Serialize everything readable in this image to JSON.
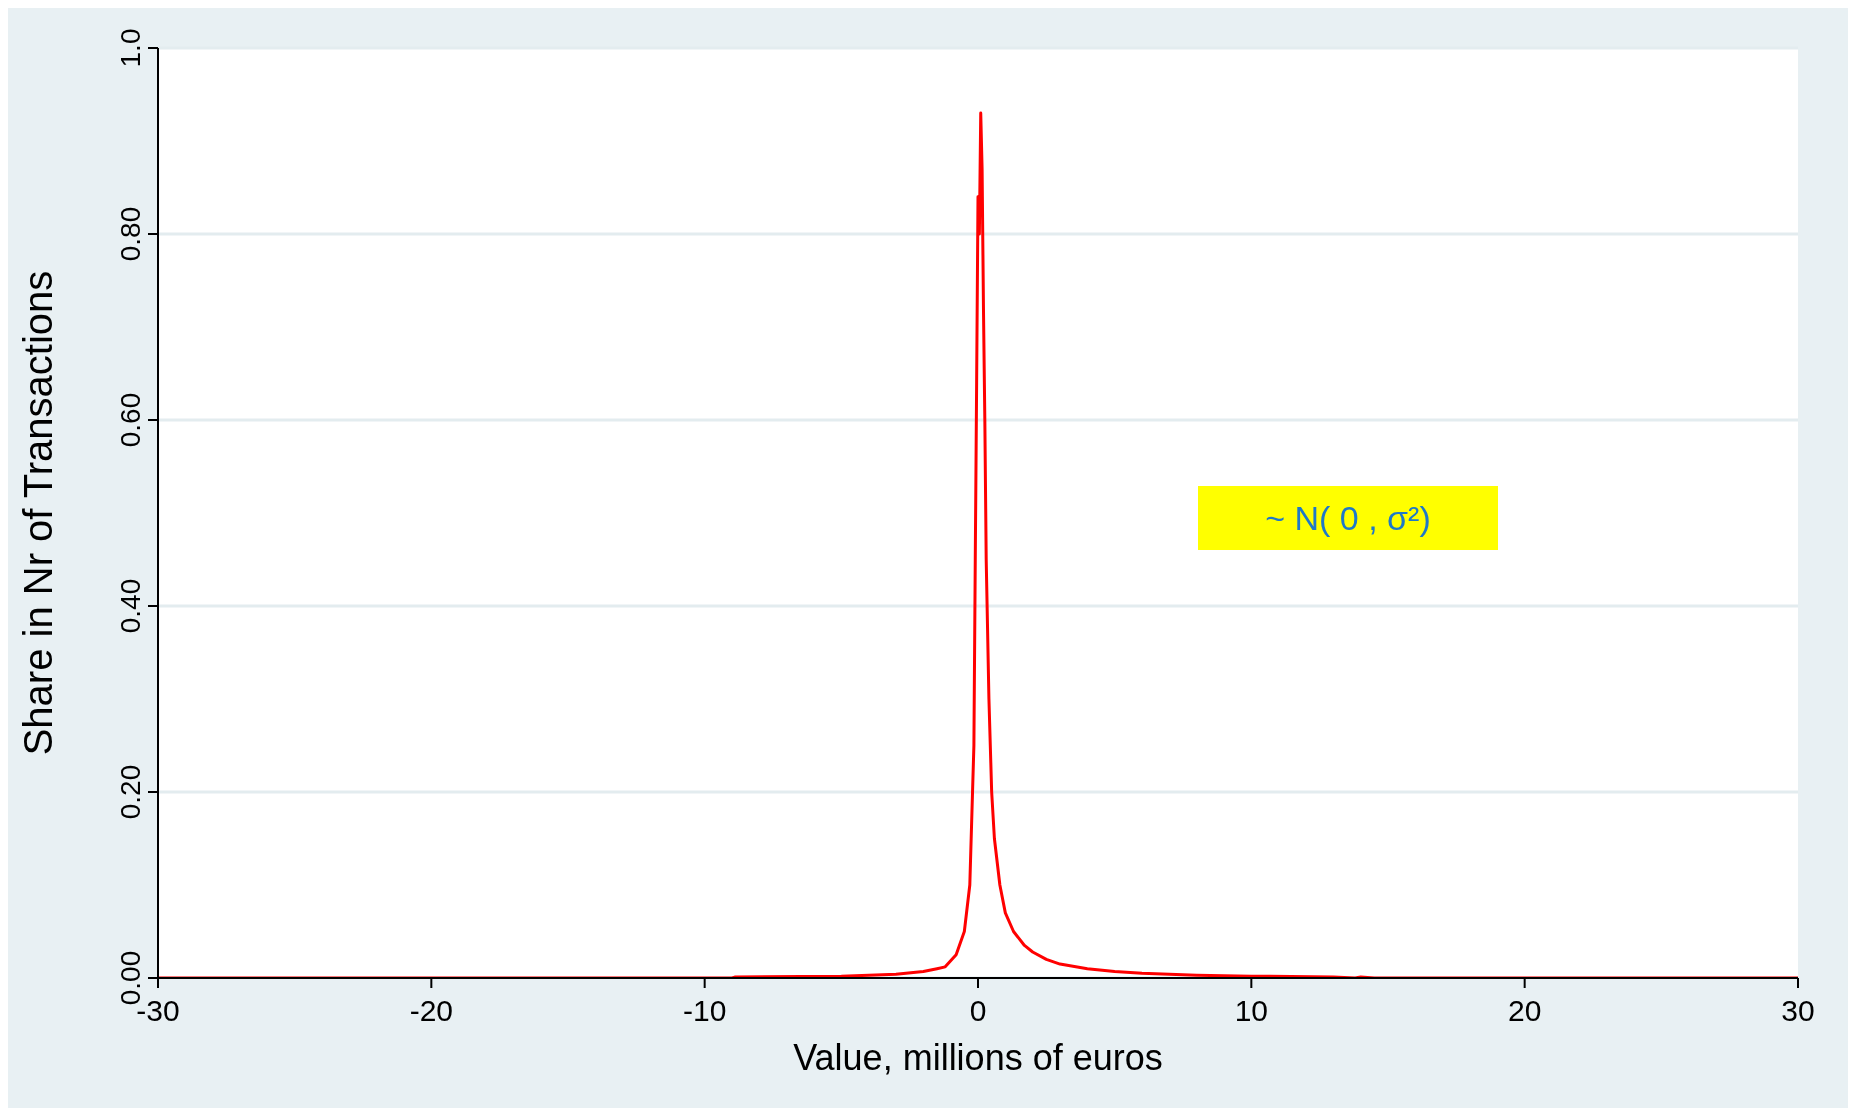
{
  "chart_data": {
    "type": "line",
    "xlabel": "Value, millions of euros",
    "ylabel": "Share in Nr of Transactions",
    "annotations": [
      "~ N( 0 , σ²)"
    ],
    "x": [
      -30,
      -9,
      -8.9,
      -5,
      -3,
      -2,
      -1.5,
      -1.2,
      -0.8,
      -0.5,
      -0.3,
      -0.2,
      -0.15,
      -0.1,
      -0.05,
      0,
      0.05,
      0.1,
      0.15,
      0.2,
      0.25,
      0.3,
      0.4,
      0.5,
      0.6,
      0.8,
      1,
      1.3,
      1.7,
      2,
      2.5,
      3,
      4,
      5,
      6,
      8,
      10,
      13,
      13.8,
      14,
      14.5,
      30
    ],
    "series": [
      {
        "color": "#ff0000",
        "values": [
          0,
          0,
          0.001,
          0.002,
          0.004,
          0.007,
          0.01,
          0.012,
          0.025,
          0.05,
          0.1,
          0.2,
          0.25,
          0.45,
          0.64,
          0.84,
          0.8,
          0.93,
          0.87,
          0.72,
          0.6,
          0.45,
          0.3,
          0.2,
          0.15,
          0.1,
          0.07,
          0.05,
          0.035,
          0.028,
          0.02,
          0.015,
          0.01,
          0.007,
          0.005,
          0.003,
          0.002,
          0.001,
          0,
          0.001,
          0,
          0
        ]
      }
    ],
    "xlim": [
      -30,
      30
    ],
    "xticks": [
      -30,
      -20,
      -10,
      0,
      10,
      20,
      30
    ],
    "ylim": [
      0,
      1
    ],
    "yticks": [
      {
        "value": 0,
        "label": "0.00"
      },
      {
        "value": 0.2,
        "label": "0.20"
      },
      {
        "value": 0.4,
        "label": "0.40"
      },
      {
        "value": 0.6,
        "label": "0.60"
      },
      {
        "value": 0.8,
        "label": "0.80"
      },
      {
        "value": 1,
        "label": "1.0"
      }
    ],
    "grid": "y",
    "legend": false,
    "marker": "none",
    "line_style": "solid"
  }
}
